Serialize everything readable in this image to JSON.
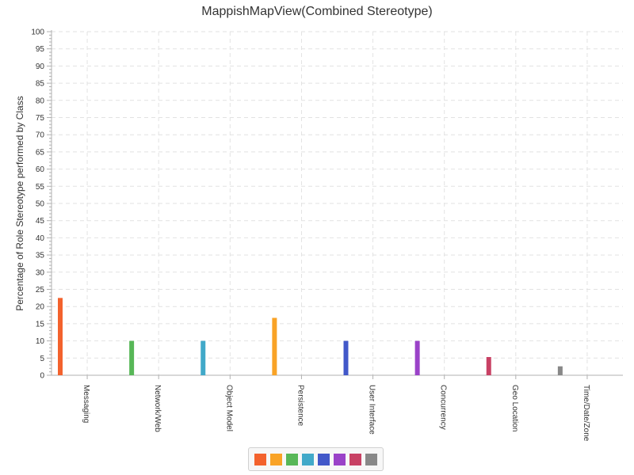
{
  "chart_data": {
    "type": "bar",
    "title": "MappishMapView(Combined Stereotype)",
    "xlabel": "",
    "ylabel": "Percentage of Role Stereotype performed by Class",
    "ylim": [
      0,
      100
    ],
    "y_major_ticks": [
      0,
      5,
      10,
      15,
      20,
      25,
      30,
      35,
      40,
      45,
      50,
      55,
      60,
      65,
      70,
      75,
      80,
      85,
      90,
      95,
      100
    ],
    "y_minor_step": 1,
    "grid": true,
    "legend": "bottom",
    "categories": [
      "Messaging",
      "Network/Web",
      "Object Model",
      "Persistence",
      "User Interface",
      "Concurrency",
      "Geo Location",
      "Time/Date/Zone"
    ],
    "values": [
      22.5,
      10,
      10,
      16.7,
      10,
      10,
      5.3,
      2.6
    ],
    "colors": [
      "#f3622d",
      "#57b757",
      "#41a9c9",
      "#f9a326",
      "#4258c9",
      "#9a42c8",
      "#c84164",
      "#888888"
    ],
    "legend_colors": [
      "#f3622d",
      "#f9a326",
      "#57b757",
      "#41a9c9",
      "#4258c9",
      "#9a42c8",
      "#c84164",
      "#888888"
    ]
  }
}
